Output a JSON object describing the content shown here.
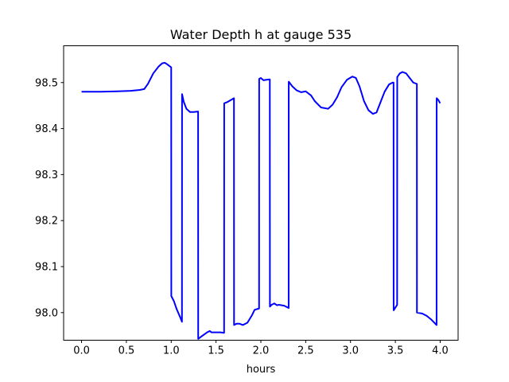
{
  "chart_data": {
    "type": "line",
    "title": "Water Depth h at gauge 535",
    "xlabel": "hours",
    "ylabel": "",
    "xlim": [
      -0.2,
      4.2
    ],
    "ylim": [
      97.94,
      98.58
    ],
    "xticks": [
      0.0,
      0.5,
      1.0,
      1.5,
      2.0,
      2.5,
      3.0,
      3.5,
      4.0
    ],
    "xtick_labels": [
      "0.0",
      "0.5",
      "1.0",
      "1.5",
      "2.0",
      "2.5",
      "3.0",
      "3.5",
      "4.0"
    ],
    "yticks": [
      98.0,
      98.1,
      98.2,
      98.3,
      98.4,
      98.5
    ],
    "ytick_labels": [
      "98.0",
      "98.1",
      "98.2",
      "98.3",
      "98.4",
      "98.5"
    ],
    "grid": false,
    "series": [
      {
        "color": "#0000ff",
        "x": [
          0.0,
          0.2,
          0.4,
          0.55,
          0.65,
          0.7,
          0.74,
          0.8,
          0.86,
          0.9,
          0.93,
          0.96,
          1.0,
          1.001,
          1.03,
          1.06,
          1.1,
          1.12,
          1.121,
          1.14,
          1.17,
          1.21,
          1.25,
          1.3,
          1.301,
          1.35,
          1.4,
          1.43,
          1.45,
          1.5,
          1.55,
          1.59,
          1.591,
          1.63,
          1.7,
          1.701,
          1.73,
          1.76,
          1.8,
          1.85,
          1.9,
          1.93,
          1.98,
          1.981,
          2.0,
          2.03,
          2.06,
          2.1,
          2.101,
          2.12,
          2.15,
          2.18,
          2.2,
          2.26,
          2.31,
          2.311,
          2.35,
          2.4,
          2.45,
          2.5,
          2.56,
          2.6,
          2.67,
          2.75,
          2.8,
          2.85,
          2.9,
          2.96,
          3.02,
          3.06,
          3.1,
          3.15,
          3.2,
          3.25,
          3.29,
          3.33,
          3.38,
          3.43,
          3.47,
          3.48,
          3.481,
          3.52,
          3.521,
          3.55,
          3.58,
          3.62,
          3.66,
          3.7,
          3.74,
          3.741,
          3.8,
          3.85,
          3.9,
          3.96,
          3.961,
          3.98,
          4.0
        ],
        "y": [
          98.48,
          98.48,
          98.481,
          98.482,
          98.484,
          98.486,
          98.497,
          98.52,
          98.535,
          98.542,
          98.543,
          98.539,
          98.533,
          98.036,
          98.025,
          98.008,
          97.99,
          97.98,
          98.475,
          98.458,
          98.443,
          98.436,
          98.436,
          98.437,
          97.943,
          97.95,
          97.957,
          97.96,
          97.957,
          97.957,
          97.957,
          97.956,
          98.455,
          98.458,
          98.466,
          97.973,
          97.976,
          97.976,
          97.973,
          97.978,
          97.994,
          98.006,
          98.009,
          98.508,
          98.51,
          98.505,
          98.506,
          98.507,
          98.013,
          98.017,
          98.02,
          98.016,
          98.017,
          98.015,
          98.01,
          98.502,
          98.492,
          98.483,
          98.479,
          98.481,
          98.472,
          98.46,
          98.446,
          98.443,
          98.452,
          98.468,
          98.49,
          98.506,
          98.513,
          98.51,
          98.492,
          98.46,
          98.44,
          98.432,
          98.435,
          98.455,
          98.48,
          98.496,
          98.5,
          98.5,
          98.005,
          98.017,
          98.512,
          98.52,
          98.523,
          98.52,
          98.51,
          98.5,
          98.497,
          98.0,
          97.998,
          97.993,
          97.985,
          97.973,
          98.466,
          98.462,
          98.455
        ]
      }
    ]
  }
}
